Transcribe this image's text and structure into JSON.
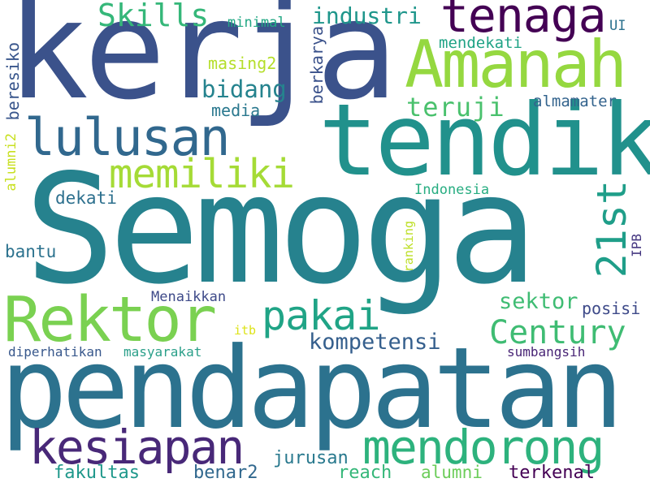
{
  "background": "#ffffff",
  "words": [
    {
      "text": "Semoga",
      "color": "#26828e"
    },
    {
      "text": "kerja",
      "color": "#3b528b"
    },
    {
      "text": "pendapatan",
      "color": "#2c728e"
    },
    {
      "text": "tendik",
      "color": "#21918c"
    },
    {
      "text": "Amanah",
      "color": "#95d840"
    },
    {
      "text": "Rektor",
      "color": "#7ad151"
    },
    {
      "text": "lulusan",
      "color": "#31688e"
    },
    {
      "text": "tenaga",
      "color": "#440154"
    },
    {
      "text": "kesiapan",
      "color": "#482878"
    },
    {
      "text": "mendorong",
      "color": "#2db27d"
    },
    {
      "text": "memiliki",
      "color": "#a5db36"
    },
    {
      "text": "pakai",
      "color": "#20a486"
    },
    {
      "text": "Century",
      "color": "#3fbc73"
    },
    {
      "text": "21st",
      "color": "#1f9e89"
    },
    {
      "text": "Skills",
      "color": "#35b779"
    },
    {
      "text": "teruji",
      "color": "#4ac16d"
    },
    {
      "text": "industri",
      "color": "#1f968b"
    },
    {
      "text": "bidang",
      "color": "#25838e"
    },
    {
      "text": "kompetensi",
      "color": "#355f8d"
    },
    {
      "text": "sektor",
      "color": "#3fbc73"
    },
    {
      "text": "posisi",
      "color": "#3e4a89"
    },
    {
      "text": "media",
      "color": "#2a788e"
    },
    {
      "text": "almamater",
      "color": "#33638d"
    },
    {
      "text": "mendekati",
      "color": "#20a386"
    },
    {
      "text": "masing2",
      "color": "#b5de2b"
    },
    {
      "text": "berkarya",
      "color": "#3b528b"
    },
    {
      "text": "minimal",
      "color": "#22a884"
    },
    {
      "text": "UI",
      "color": "#2c728e"
    },
    {
      "text": "beresiko",
      "color": "#39568c"
    },
    {
      "text": "alumni2",
      "color": "#c8e020"
    },
    {
      "text": "dekati",
      "color": "#2d708e"
    },
    {
      "text": "Indonesia",
      "color": "#27ad81"
    },
    {
      "text": "bantu",
      "color": "#2c728e"
    },
    {
      "text": "ranking",
      "color": "#bddf26"
    },
    {
      "text": "IPB",
      "color": "#453781"
    },
    {
      "text": "Menaikkan",
      "color": "#3e4a89"
    },
    {
      "text": "itb",
      "color": "#dde318"
    },
    {
      "text": "diperhatikan",
      "color": "#38588c"
    },
    {
      "text": "masyarakat",
      "color": "#2a9f89"
    },
    {
      "text": "sumbangsih",
      "color": "#482475"
    },
    {
      "text": "jurusan",
      "color": "#29798e"
    },
    {
      "text": "fakultas",
      "color": "#1f988b"
    },
    {
      "text": "benar2",
      "color": "#31688e"
    },
    {
      "text": "reach",
      "color": "#35b779"
    },
    {
      "text": "alumni",
      "color": "#6ccd5a"
    },
    {
      "text": "terkenal",
      "color": "#440154"
    }
  ]
}
